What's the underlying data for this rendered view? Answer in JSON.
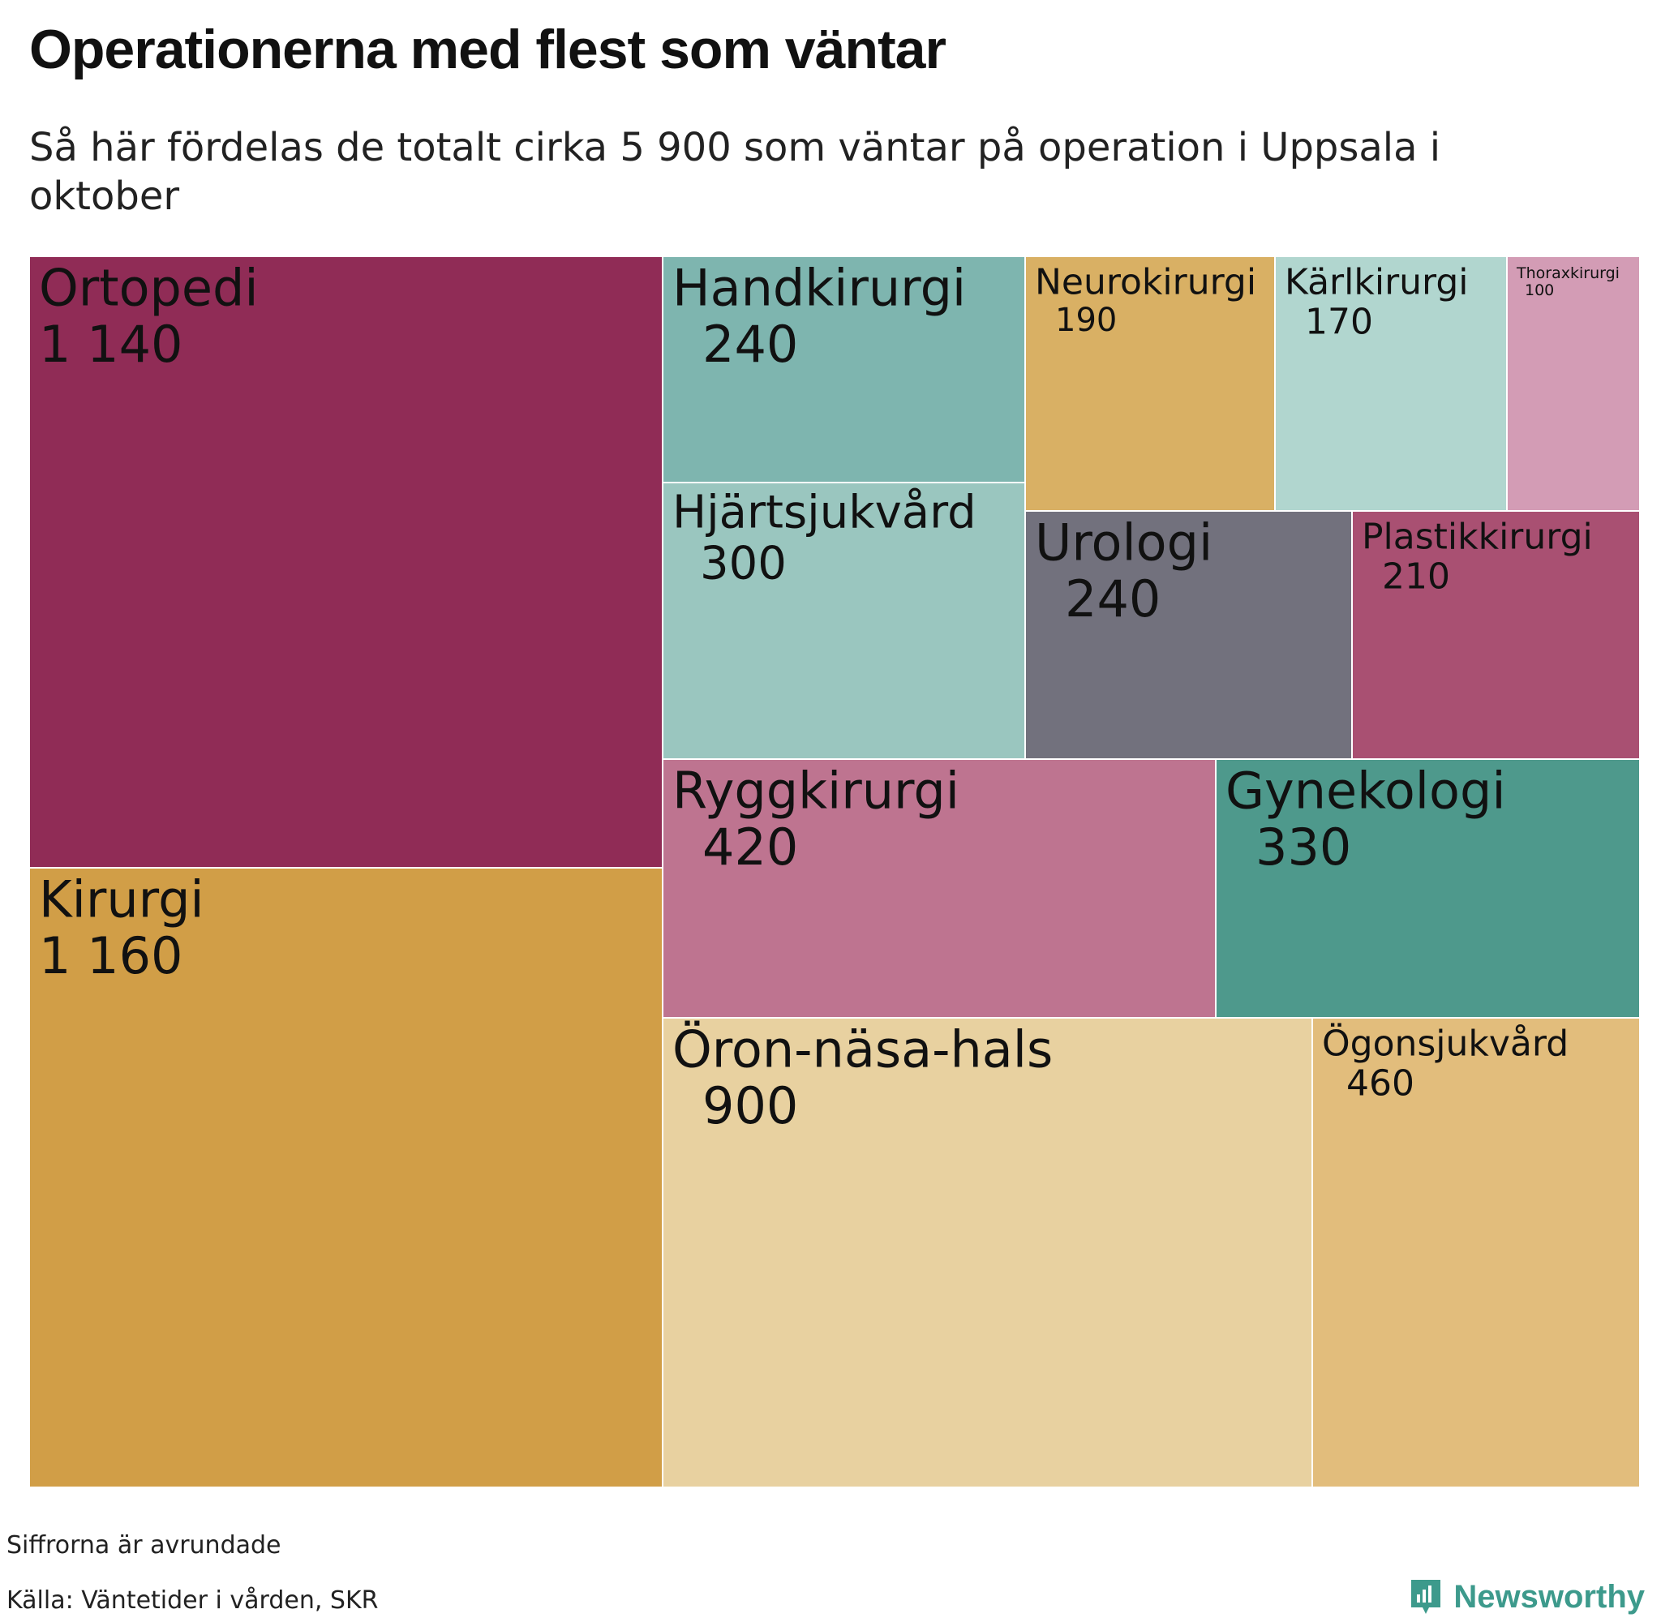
{
  "title": "Operationerna med flest som väntar",
  "subtitle": "Så här fördelas de totalt cirka 5 900 som väntar på operation i Uppsala i oktober",
  "chart_data": {
    "type": "treemap",
    "total": 5900,
    "nodes": [
      {
        "name": "Ortopedi",
        "value_label": "1 140",
        "value": 1140,
        "color": "#902c56"
      },
      {
        "name": "Kirurgi",
        "value_label": "1 160",
        "value": 1160,
        "color": "#d19e47"
      },
      {
        "name": "Handkirurgi",
        "value_label": "240",
        "value": 240,
        "color": "#7eb5af"
      },
      {
        "name": "Hjärtsjukvård",
        "value_label": "300",
        "value": 300,
        "color": "#9ac6bf"
      },
      {
        "name": "Neurokirurgi",
        "value_label": "190",
        "value": 190,
        "color": "#d9b064"
      },
      {
        "name": "Kärlkirurgi",
        "value_label": "170",
        "value": 170,
        "color": "#b1d6cf"
      },
      {
        "name": "Thoraxkirurgi",
        "value_label": "100",
        "value": 100,
        "color": "#d39cb5"
      },
      {
        "name": "Urologi",
        "value_label": "240",
        "value": 240,
        "color": "#72717d"
      },
      {
        "name": "Plastikkirurgi",
        "value_label": "210",
        "value": 210,
        "color": "#a95072"
      },
      {
        "name": "Ryggkirurgi",
        "value_label": "420",
        "value": 420,
        "color": "#be7490"
      },
      {
        "name": "Gynekologi",
        "value_label": "330",
        "value": 330,
        "color": "#4e998c"
      },
      {
        "name": "Öron-näsa-hals",
        "value_label": "900",
        "value": 900,
        "color": "#e8d1a0"
      },
      {
        "name": "Ögonsjukvård",
        "value_label": "460",
        "value": 460,
        "color": "#e2bd7c"
      }
    ]
  },
  "footer": {
    "note": "Siffrorna är avrundade",
    "source": "Källa: Väntetider i vården, SKR",
    "brand": "Newsworthy",
    "brand_color": "#3d9a8c"
  }
}
